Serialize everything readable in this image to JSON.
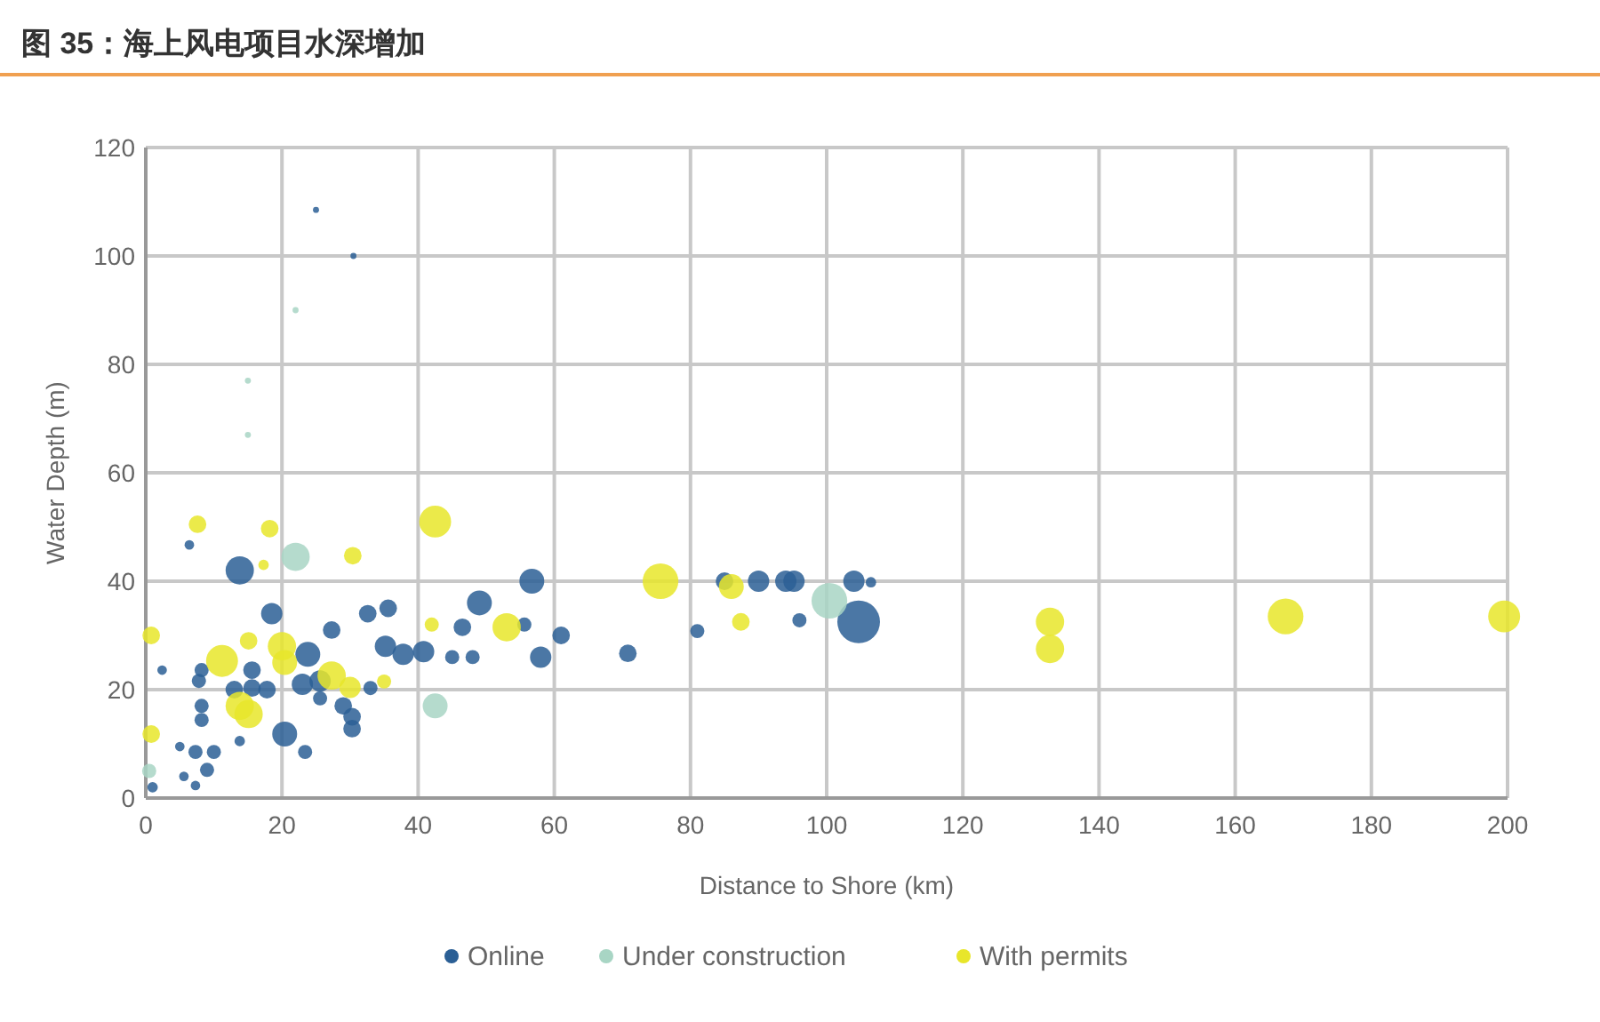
{
  "chart_data": {
    "type": "bubble",
    "title": "图 35：海上风电项目水深增加",
    "xlabel": "Distance to Shore (km)",
    "ylabel": "Water Depth (m)",
    "xlim": [
      0,
      200
    ],
    "xticks": [
      0,
      20,
      40,
      60,
      80,
      100,
      120,
      140,
      160,
      180,
      200
    ],
    "ylim": [
      0,
      120
    ],
    "yticks": [
      0,
      20,
      40,
      60,
      80,
      100,
      120
    ],
    "grid": true,
    "legend": "bottom",
    "marker": "circle",
    "series": [
      {
        "name": "Online",
        "color": "#2b5f95",
        "x": [
          13.8,
          18.5,
          27.3,
          32.6,
          35.6,
          35.2,
          37.8,
          40.8,
          49,
          56.7,
          46.5,
          45,
          48,
          58,
          61,
          23.8,
          23,
          25.6,
          15.6,
          13,
          15.6,
          17.8,
          8.2,
          7.8,
          8.2,
          8.2,
          20.4,
          23.4,
          29,
          30.3,
          30.3,
          25.6,
          33,
          7.3,
          10,
          9,
          5,
          5.6,
          7.3,
          2.4,
          13.8,
          1,
          6.4,
          70.8,
          81,
          90,
          94,
          95.2,
          85,
          96,
          104,
          106.5,
          104.7,
          55.6,
          25,
          30.5
        ],
        "values": [
          42,
          34,
          31,
          34,
          35,
          28,
          26.5,
          27,
          36,
          40,
          31.5,
          26,
          26,
          26,
          30,
          26.5,
          21,
          21.6,
          23.6,
          20,
          20.3,
          20,
          23.6,
          21.6,
          17,
          14.4,
          11.8,
          8.5,
          17,
          15,
          12.8,
          18.4,
          20.3,
          8.5,
          8.5,
          5.2,
          9.5,
          4,
          2.3,
          23.6,
          10.5,
          2,
          46.7,
          26.7,
          30.8,
          40,
          40,
          40,
          40,
          32.8,
          40,
          39.8,
          32.5,
          32,
          108.5,
          100
        ],
        "sizes": [
          0.44,
          0.25,
          0.17,
          0.17,
          0.17,
          0.25,
          0.25,
          0.25,
          0.34,
          0.34,
          0.17,
          0.11,
          0.11,
          0.25,
          0.17,
          0.34,
          0.25,
          0.25,
          0.17,
          0.17,
          0.17,
          0.17,
          0.11,
          0.11,
          0.11,
          0.11,
          0.34,
          0.11,
          0.17,
          0.17,
          0.17,
          0.11,
          0.11,
          0.11,
          0.11,
          0.11,
          0.05,
          0.05,
          0.05,
          0.05,
          0.06,
          0.06,
          0.05,
          0.17,
          0.11,
          0.25,
          0.25,
          0.25,
          0.17,
          0.11,
          0.25,
          0.06,
          1,
          0.11,
          0.02,
          0.02
        ]
      },
      {
        "name": "Under construction",
        "color": "#a8d5c4",
        "x": [
          22,
          42.5,
          100.4,
          0.5,
          22,
          15,
          15
        ],
        "values": [
          44.5,
          17,
          36.4,
          5,
          90,
          77,
          67
        ],
        "sizes": [
          0.44,
          0.34,
          0.7,
          0.11,
          0.02,
          0.02,
          0.02
        ]
      },
      {
        "name": "With permits",
        "color": "#e8e62a",
        "x": [
          7.6,
          18.2,
          17.3,
          30.4,
          42.5,
          0.8,
          0.8,
          11.2,
          15.1,
          20,
          20.4,
          13.8,
          15.1,
          27.3,
          30,
          35,
          42,
          53,
          75.6,
          86,
          87.4,
          132.8,
          132.8,
          167.4,
          199.5
        ],
        "values": [
          50.5,
          49.7,
          43,
          44.7,
          51,
          30,
          11.8,
          25.3,
          29,
          28,
          25,
          17,
          15.5,
          22.6,
          20.4,
          21.5,
          32,
          31.5,
          40,
          39,
          32.5,
          32.5,
          27.5,
          33.5,
          33.5
        ],
        "sizes": [
          0.17,
          0.17,
          0.06,
          0.17,
          0.56,
          0.17,
          0.17,
          0.56,
          0.17,
          0.44,
          0.34,
          0.44,
          0.44,
          0.44,
          0.25,
          0.11,
          0.11,
          0.44,
          0.7,
          0.34,
          0.17,
          0.44,
          0.44,
          0.7,
          0.56
        ]
      }
    ]
  }
}
